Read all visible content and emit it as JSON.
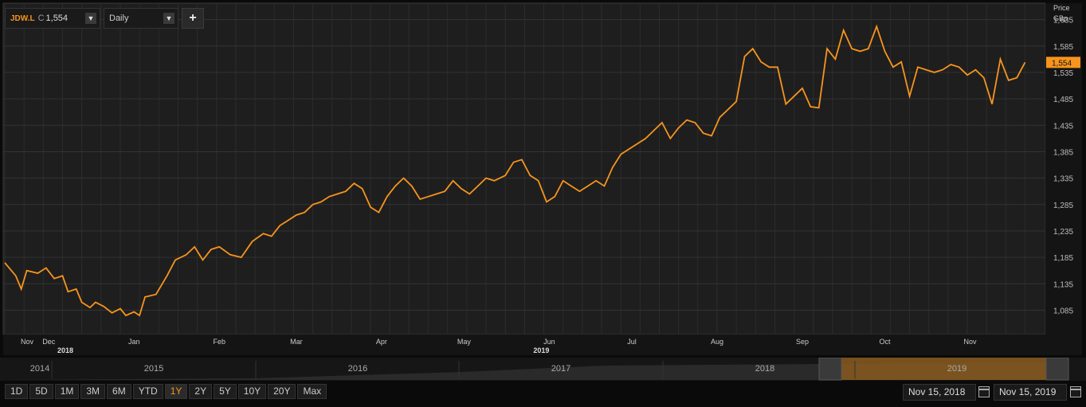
{
  "toolbar": {
    "ticker": "JDW.L",
    "close_prefix": "C",
    "close_value": "1,554",
    "frequency": "Daily",
    "add_label": "+"
  },
  "axis": {
    "unit_line1": "Price",
    "unit_line2": "GBp",
    "last_price_label": "1,554"
  },
  "navigator": {
    "years": [
      "2014",
      "2015",
      "2016",
      "2017",
      "2018",
      "2019"
    ]
  },
  "range_buttons": [
    "1D",
    "5D",
    "1M",
    "3M",
    "6M",
    "YTD",
    "1Y",
    "2Y",
    "5Y",
    "10Y",
    "20Y",
    "Max"
  ],
  "active_range": "1Y",
  "date_range": {
    "start": "Nov 15, 2018",
    "end": "Nov 15, 2019"
  },
  "colors": {
    "line": "#f7941d",
    "background": "#1e1e1e",
    "grid": "#333333",
    "navigator_highlight": "#8a5a1e"
  },
  "chart_data": {
    "type": "line",
    "title": "",
    "ylabel": "Price GBp",
    "ylim": [
      1045,
      1660
    ],
    "yticks": [
      1085,
      1135,
      1185,
      1235,
      1285,
      1335,
      1385,
      1435,
      1485,
      1535,
      1585,
      1635
    ],
    "ytick_labels": [
      "1,085",
      "1,135",
      "1,185",
      "1,235",
      "1,285",
      "1,335",
      "1,385",
      "1,435",
      "1,485",
      "1,535",
      "1,585",
      "1,635"
    ],
    "xlim": [
      "2018-11-15",
      "2019-11-22"
    ],
    "month_ticks": [
      {
        "label": "Nov",
        "date": "2018-11-01",
        "year": "2018"
      },
      {
        "label": "Dec",
        "date": "2018-12-01"
      },
      {
        "label": "Jan",
        "date": "2019-01-01"
      },
      {
        "label": "Feb",
        "date": "2019-02-01"
      },
      {
        "label": "Mar",
        "date": "2019-03-01"
      },
      {
        "label": "Apr",
        "date": "2019-04-01"
      },
      {
        "label": "May",
        "date": "2019-05-01"
      },
      {
        "label": "Jun",
        "date": "2019-06-01",
        "year": "2019"
      },
      {
        "label": "Jul",
        "date": "2019-07-01"
      },
      {
        "label": "Aug",
        "date": "2019-08-01"
      },
      {
        "label": "Sep",
        "date": "2019-09-01"
      },
      {
        "label": "Oct",
        "date": "2019-10-01"
      },
      {
        "label": "Nov",
        "date": "2019-11-01"
      }
    ],
    "series": [
      {
        "color": "#f7941d",
        "points": [
          [
            "2018-11-15",
            1175
          ],
          [
            "2018-11-19",
            1150
          ],
          [
            "2018-11-21",
            1125
          ],
          [
            "2018-11-23",
            1160
          ],
          [
            "2018-11-27",
            1155
          ],
          [
            "2018-11-30",
            1165
          ],
          [
            "2018-12-03",
            1145
          ],
          [
            "2018-12-06",
            1150
          ],
          [
            "2018-12-08",
            1120
          ],
          [
            "2018-12-11",
            1125
          ],
          [
            "2018-12-13",
            1100
          ],
          [
            "2018-12-16",
            1090
          ],
          [
            "2018-12-18",
            1100
          ],
          [
            "2018-12-21",
            1092
          ],
          [
            "2018-12-24",
            1080
          ],
          [
            "2018-12-27",
            1088
          ],
          [
            "2018-12-29",
            1075
          ],
          [
            "2019-01-01",
            1082
          ],
          [
            "2019-01-03",
            1075
          ],
          [
            "2019-01-05",
            1110
          ],
          [
            "2019-01-09",
            1115
          ],
          [
            "2019-01-13",
            1150
          ],
          [
            "2019-01-16",
            1180
          ],
          [
            "2019-01-20",
            1190
          ],
          [
            "2019-01-23",
            1205
          ],
          [
            "2019-01-26",
            1180
          ],
          [
            "2019-01-29",
            1200
          ],
          [
            "2019-02-01",
            1205
          ],
          [
            "2019-02-05",
            1190
          ],
          [
            "2019-02-09",
            1185
          ],
          [
            "2019-02-13",
            1215
          ],
          [
            "2019-02-17",
            1230
          ],
          [
            "2019-02-20",
            1225
          ],
          [
            "2019-02-23",
            1245
          ],
          [
            "2019-02-26",
            1255
          ],
          [
            "2019-03-01",
            1265
          ],
          [
            "2019-03-04",
            1270
          ],
          [
            "2019-03-07",
            1285
          ],
          [
            "2019-03-10",
            1290
          ],
          [
            "2019-03-13",
            1300
          ],
          [
            "2019-03-16",
            1305
          ],
          [
            "2019-03-19",
            1310
          ],
          [
            "2019-03-22",
            1325
          ],
          [
            "2019-03-25",
            1315
          ],
          [
            "2019-03-28",
            1280
          ],
          [
            "2019-03-31",
            1270
          ],
          [
            "2019-04-03",
            1300
          ],
          [
            "2019-04-06",
            1320
          ],
          [
            "2019-04-09",
            1335
          ],
          [
            "2019-04-12",
            1320
          ],
          [
            "2019-04-15",
            1295
          ],
          [
            "2019-04-18",
            1300
          ],
          [
            "2019-04-21",
            1305
          ],
          [
            "2019-04-24",
            1310
          ],
          [
            "2019-04-27",
            1330
          ],
          [
            "2019-04-30",
            1315
          ],
          [
            "2019-05-03",
            1305
          ],
          [
            "2019-05-06",
            1320
          ],
          [
            "2019-05-09",
            1335
          ],
          [
            "2019-05-12",
            1330
          ],
          [
            "2019-05-16",
            1340
          ],
          [
            "2019-05-19",
            1365
          ],
          [
            "2019-05-22",
            1370
          ],
          [
            "2019-05-25",
            1340
          ],
          [
            "2019-05-28",
            1330
          ],
          [
            "2019-05-31",
            1290
          ],
          [
            "2019-06-03",
            1300
          ],
          [
            "2019-06-06",
            1330
          ],
          [
            "2019-06-09",
            1320
          ],
          [
            "2019-06-12",
            1310
          ],
          [
            "2019-06-15",
            1320
          ],
          [
            "2019-06-18",
            1330
          ],
          [
            "2019-06-21",
            1320
          ],
          [
            "2019-06-24",
            1355
          ],
          [
            "2019-06-27",
            1380
          ],
          [
            "2019-06-30",
            1390
          ],
          [
            "2019-07-03",
            1400
          ],
          [
            "2019-07-06",
            1410
          ],
          [
            "2019-07-09",
            1425
          ],
          [
            "2019-07-12",
            1440
          ],
          [
            "2019-07-15",
            1410
          ],
          [
            "2019-07-18",
            1430
          ],
          [
            "2019-07-21",
            1445
          ],
          [
            "2019-07-24",
            1440
          ],
          [
            "2019-07-27",
            1420
          ],
          [
            "2019-07-30",
            1415
          ],
          [
            "2019-08-02",
            1450
          ],
          [
            "2019-08-05",
            1465
          ],
          [
            "2019-08-08",
            1480
          ],
          [
            "2019-08-11",
            1565
          ],
          [
            "2019-08-14",
            1580
          ],
          [
            "2019-08-17",
            1555
          ],
          [
            "2019-08-20",
            1545
          ],
          [
            "2019-08-23",
            1545
          ],
          [
            "2019-08-26",
            1475
          ],
          [
            "2019-08-29",
            1490
          ],
          [
            "2019-09-01",
            1505
          ],
          [
            "2019-09-04",
            1470
          ],
          [
            "2019-09-07",
            1468
          ],
          [
            "2019-09-10",
            1580
          ],
          [
            "2019-09-13",
            1560
          ],
          [
            "2019-09-16",
            1615
          ],
          [
            "2019-09-19",
            1580
          ],
          [
            "2019-09-22",
            1575
          ],
          [
            "2019-09-25",
            1580
          ],
          [
            "2019-09-28",
            1622
          ],
          [
            "2019-10-01",
            1575
          ],
          [
            "2019-10-04",
            1545
          ],
          [
            "2019-10-07",
            1555
          ],
          [
            "2019-10-10",
            1490
          ],
          [
            "2019-10-13",
            1545
          ],
          [
            "2019-10-16",
            1540
          ],
          [
            "2019-10-19",
            1535
          ],
          [
            "2019-10-22",
            1540
          ],
          [
            "2019-10-25",
            1550
          ],
          [
            "2019-10-28",
            1545
          ],
          [
            "2019-10-31",
            1530
          ],
          [
            "2019-11-03",
            1540
          ],
          [
            "2019-11-06",
            1525
          ],
          [
            "2019-11-09",
            1475
          ],
          [
            "2019-11-12",
            1560
          ],
          [
            "2019-11-15",
            1520
          ],
          [
            "2019-11-18",
            1525
          ],
          [
            "2019-11-21",
            1554
          ]
        ]
      }
    ],
    "grid": true,
    "last_value": 1554
  }
}
